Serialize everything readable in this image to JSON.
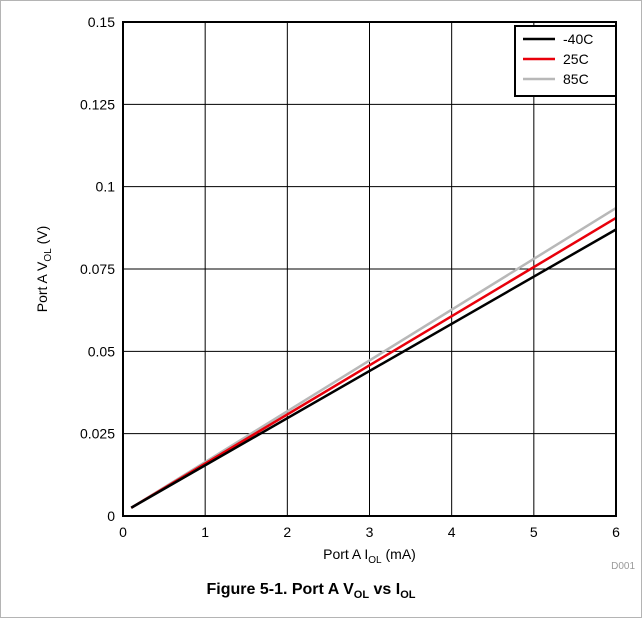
{
  "chart_data": {
    "type": "line",
    "xlabel": {
      "prefix": "Port A I",
      "sub": "OL",
      "suffix": " (mA)"
    },
    "ylabel": {
      "prefix": "Port A V",
      "sub": "OL",
      "suffix": " (V)"
    },
    "xlim": [
      0,
      6
    ],
    "ylim": [
      0,
      0.15
    ],
    "x_ticks": [
      0,
      1,
      2,
      3,
      4,
      5,
      6
    ],
    "x_tick_labels": [
      "0",
      "1",
      "2",
      "3",
      "4",
      "5",
      "6"
    ],
    "y_ticks": [
      0,
      0.025,
      0.05,
      0.075,
      0.1,
      0.125,
      0.15
    ],
    "y_tick_labels": [
      "0",
      "0.025",
      "0.05",
      "0.075",
      "0.1",
      "0.125",
      "0.15"
    ],
    "grid": true,
    "legend_position": "top-right",
    "series": [
      {
        "name": "-40C",
        "color": "#000000",
        "x": [
          0.1,
          6
        ],
        "y": [
          0.0025,
          0.087
        ]
      },
      {
        "name": "25C",
        "color": "#e8000b",
        "x": [
          0.1,
          6
        ],
        "y": [
          0.0025,
          0.0905
        ]
      },
      {
        "name": "85C",
        "color": "#b8b8b8",
        "x": [
          0.1,
          6
        ],
        "y": [
          0.0025,
          0.0935
        ]
      }
    ],
    "tag": "D001"
  },
  "caption": {
    "part1": "Figure 5-1. Port A V",
    "sub1": "OL",
    "part2": " vs I",
    "sub2": "OL"
  }
}
